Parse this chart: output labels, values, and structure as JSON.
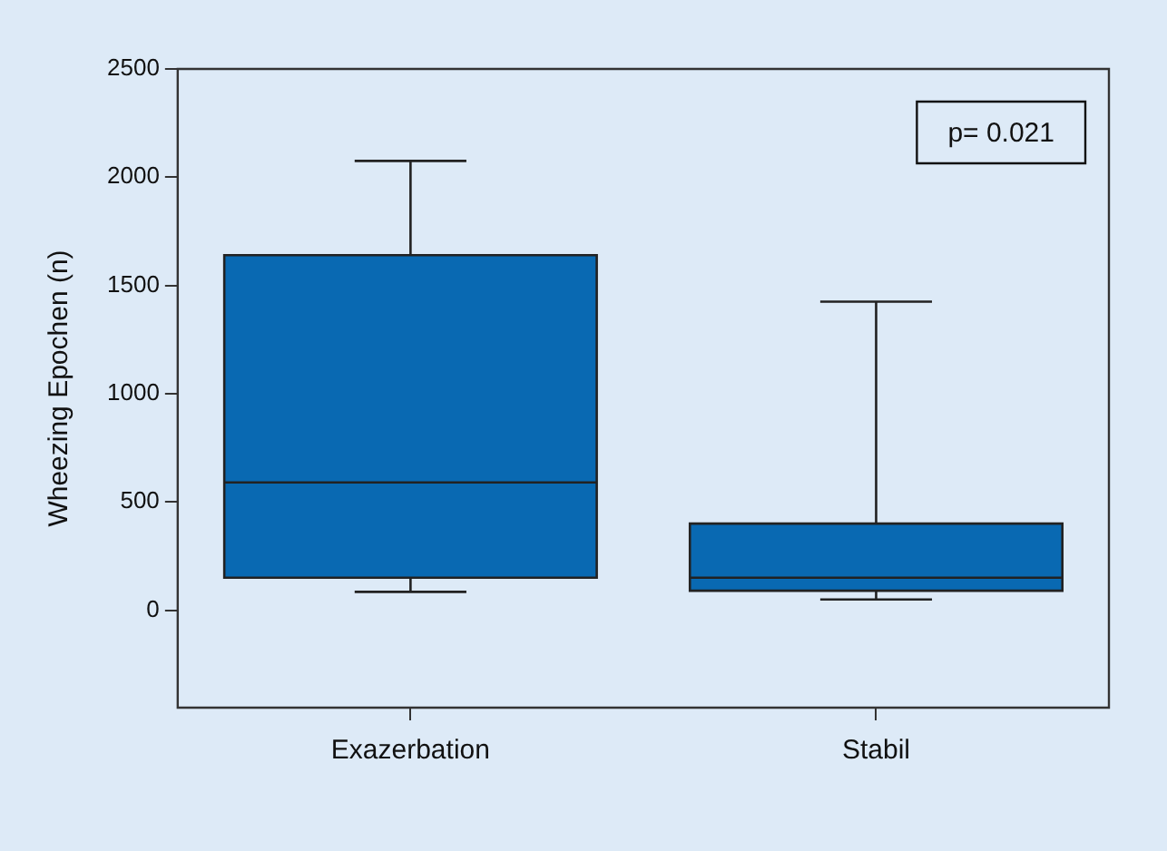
{
  "chart_data": {
    "type": "box",
    "ylabel": "Wheezing Epochen (n)",
    "categories": [
      "Exazerbation",
      "Stabil"
    ],
    "color": "#0969b2",
    "boxes": [
      {
        "low": 85,
        "q1": 150,
        "median": 590,
        "q3": 1640,
        "high": 2075
      },
      {
        "low": 50,
        "q1": 90,
        "median": 150,
        "q3": 400,
        "high": 1425
      }
    ],
    "ylim": [
      -450,
      2500
    ],
    "yticks": [
      0,
      500,
      1000,
      1500,
      2000,
      2500
    ],
    "grid": false,
    "legend": false,
    "annotations": [
      "p= 0.021"
    ]
  }
}
